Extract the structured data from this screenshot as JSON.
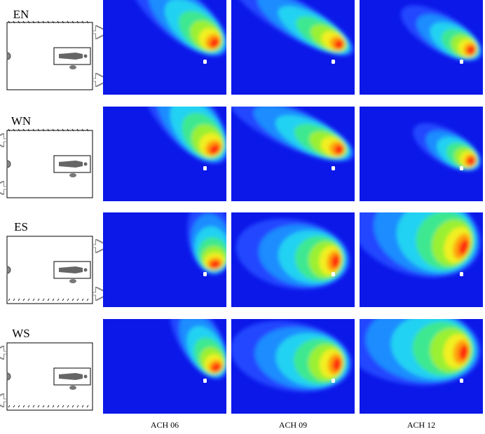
{
  "rows": [
    {
      "label": "EN"
    },
    {
      "label": "WN"
    },
    {
      "label": "ES"
    },
    {
      "label": "WS"
    }
  ],
  "columns": [
    "ACH 06",
    "ACH 09",
    "ACH 12"
  ]
}
